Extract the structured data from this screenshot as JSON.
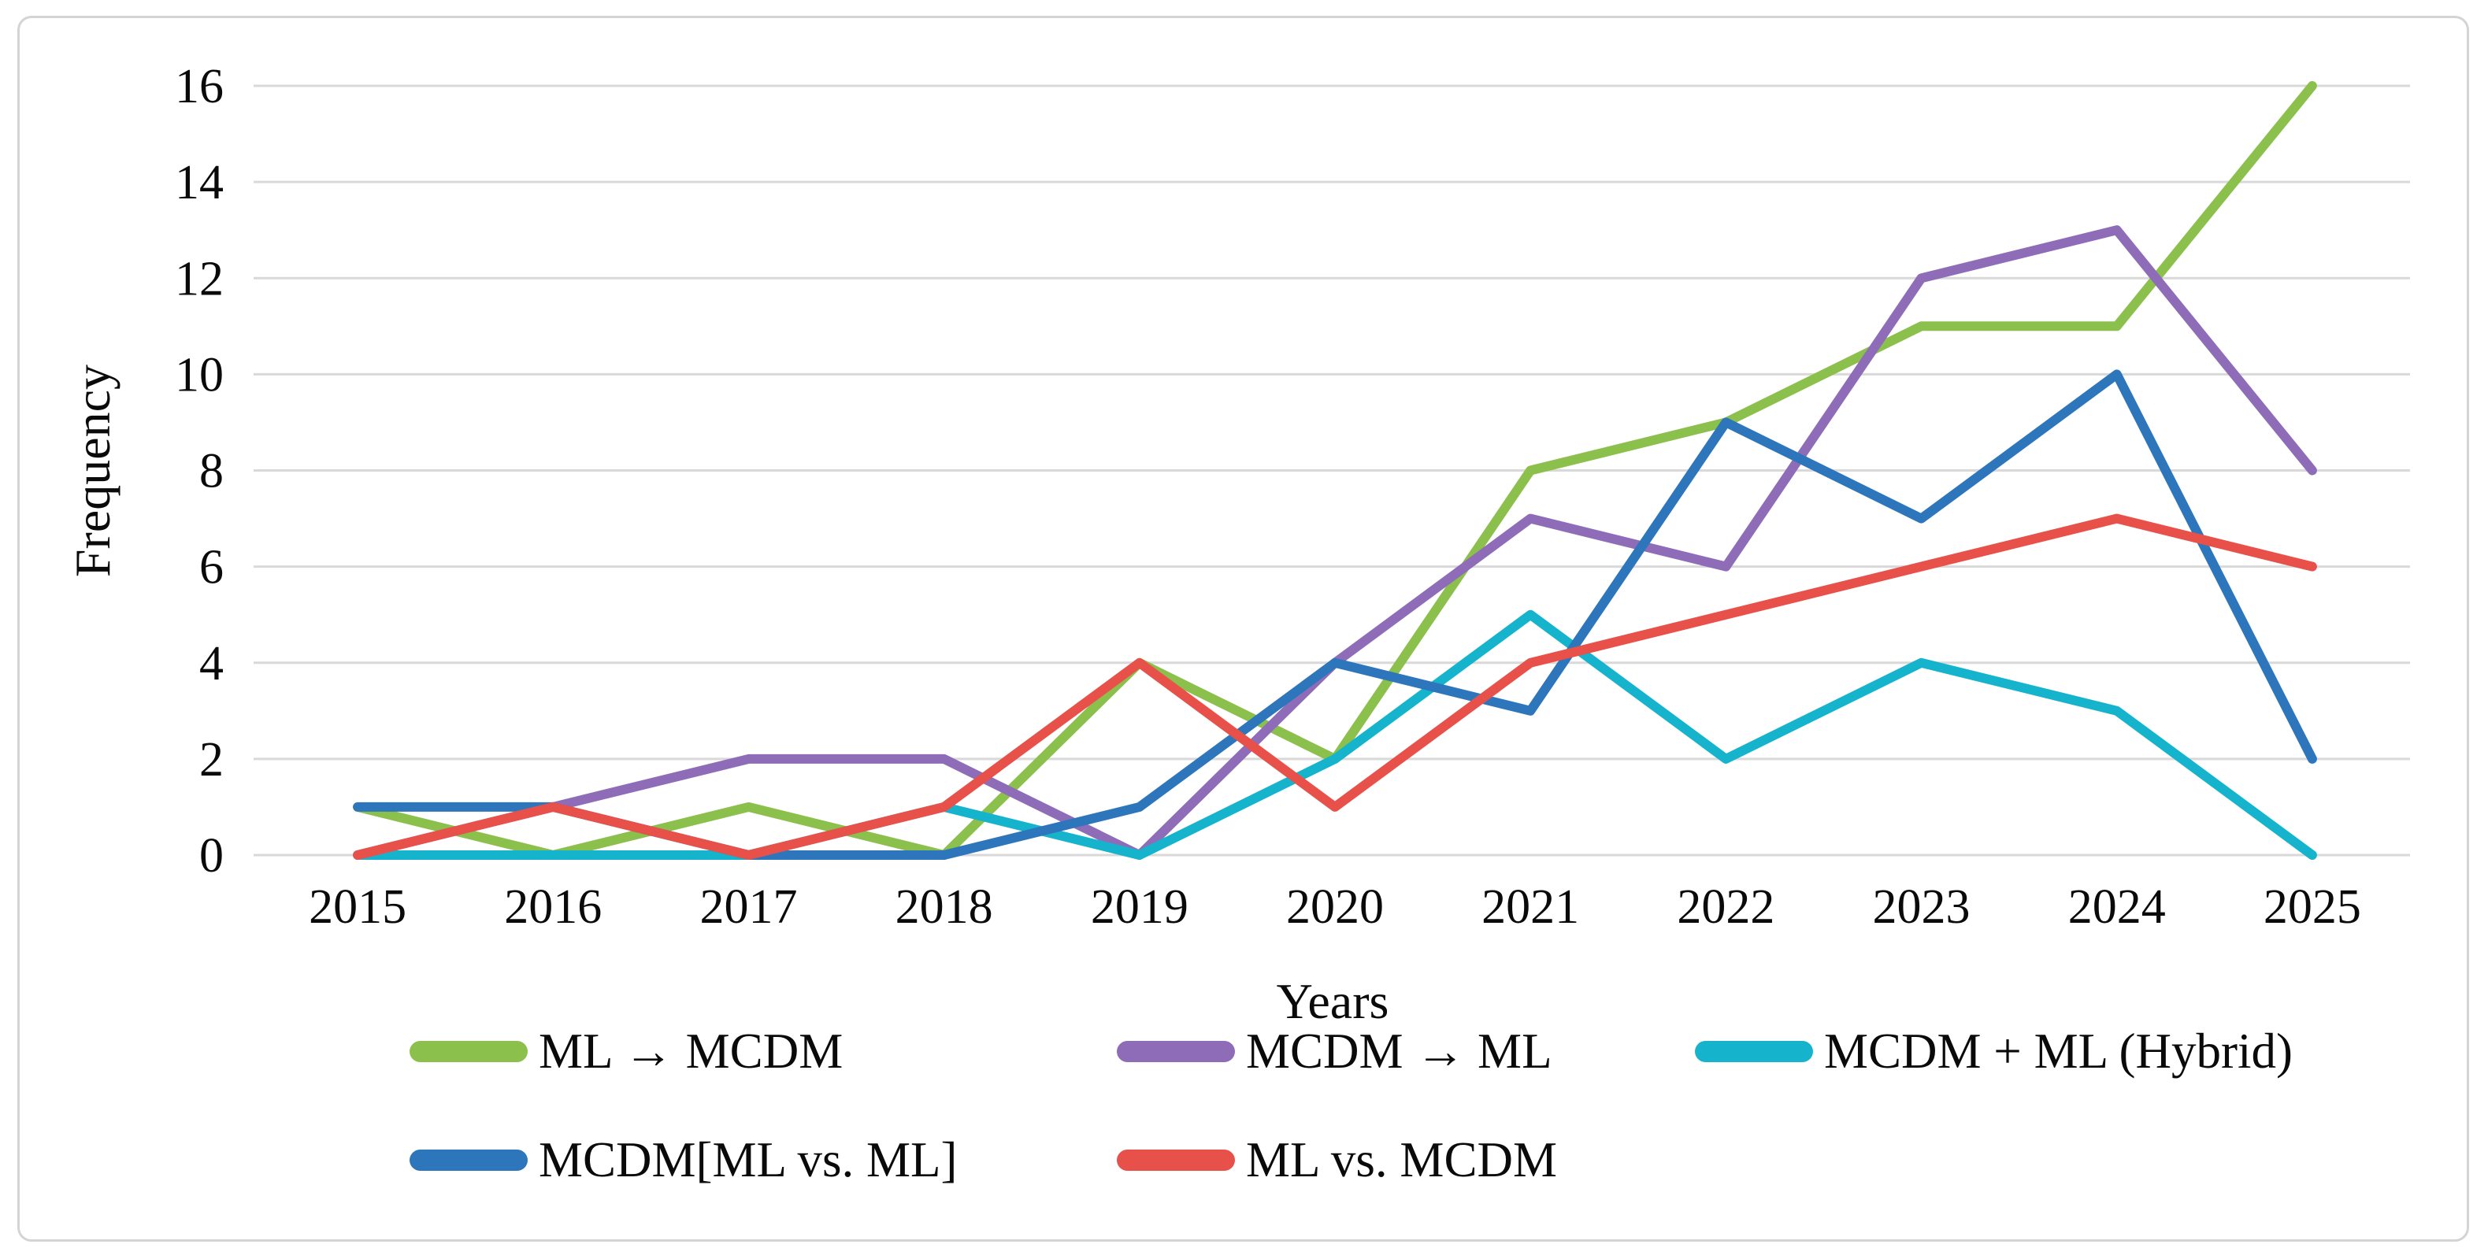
{
  "axes": {
    "y": {
      "title": "Frequency",
      "min": 0,
      "max": 16,
      "step": 2,
      "tick_labels": [
        "0",
        "2",
        "4",
        "6",
        "8",
        "10",
        "12",
        "14",
        "16"
      ]
    },
    "x": {
      "title": "Years",
      "tick_labels": [
        "2015",
        "2016",
        "2017",
        "2018",
        "2019",
        "2020",
        "2021",
        "2022",
        "2023",
        "2024",
        "2025"
      ]
    }
  },
  "legend": {
    "items": [
      {
        "label": "ML → MCDM",
        "color": "#8cc04c"
      },
      {
        "label": "MCDM → ML",
        "color": "#8e6cb8"
      },
      {
        "label": "MCDM + ML (Hybrid)",
        "color": "#16b4cc"
      },
      {
        "label": "MCDM[ML vs. ML]",
        "color": "#2e76bc"
      },
      {
        "label": "ML vs. MCDM",
        "color": "#e8504a"
      }
    ]
  },
  "colors": {
    "gridline": "#d9d9d9",
    "frame_border": "#d4d4d4",
    "text": "#0a0a0a",
    "background": "#ffffff"
  },
  "chart_data": {
    "type": "line",
    "title": "",
    "xlabel": "Years",
    "ylabel": "Frequency",
    "ylim": [
      0,
      16
    ],
    "y_tick_step": 2,
    "grid": "horizontal",
    "legend_position": "bottom",
    "categories": [
      "2015",
      "2016",
      "2017",
      "2018",
      "2019",
      "2020",
      "2021",
      "2022",
      "2023",
      "2024",
      "2025"
    ],
    "series": [
      {
        "name": "ML → MCDM",
        "color": "#8cc04c",
        "values": [
          1,
          0,
          1,
          0,
          4,
          2,
          8,
          9,
          11,
          11,
          16
        ]
      },
      {
        "name": "MCDM → ML",
        "color": "#8e6cb8",
        "values": [
          0,
          1,
          2,
          2,
          0,
          4,
          7,
          6,
          12,
          13,
          8
        ]
      },
      {
        "name": "MCDM + ML (Hybrid)",
        "color": "#16b4cc",
        "values": [
          0,
          0,
          0,
          1,
          0,
          2,
          5,
          2,
          4,
          3,
          0
        ]
      },
      {
        "name": "MCDM[ML vs. ML]",
        "color": "#2e76bc",
        "values": [
          1,
          1,
          0,
          0,
          1,
          4,
          3,
          9,
          7,
          10,
          2
        ]
      },
      {
        "name": "ML vs. MCDM",
        "color": "#e8504a",
        "values": [
          0,
          1,
          0,
          1,
          4,
          1,
          4,
          5,
          6,
          7,
          6
        ]
      }
    ]
  }
}
